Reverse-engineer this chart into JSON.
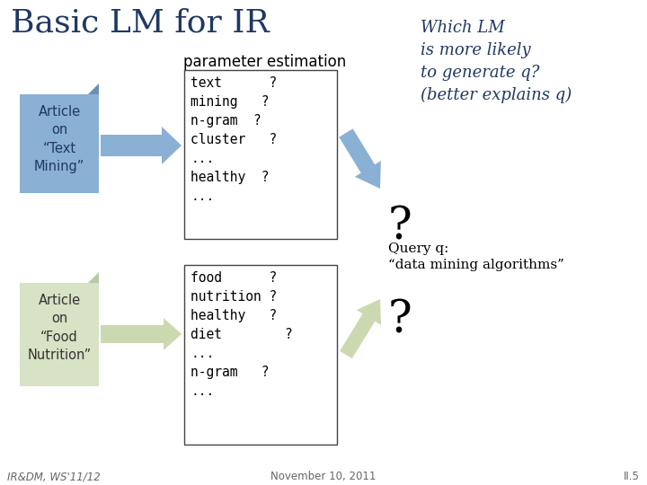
{
  "title": "Basic LM for IR",
  "param_label": "parameter estimation",
  "article1_lines": [
    "Article",
    "on",
    "“Text",
    "Mining”"
  ],
  "article2_lines": [
    "Article",
    "on",
    "“Food",
    "Nutrition”"
  ],
  "box1_content": "text      ?\nmining   ?\nn-gram  ?\ncluster   ?\n...\nhealthy  ?\n...",
  "box2_content": "food      ?\nnutrition ?\nhealthy   ?\ndiet        ?\n...\nn-gram   ?\n...",
  "which_lm_lines": [
    "Which LM",
    "is more likely",
    "to generate q?",
    "(better explains q)"
  ],
  "query_line1": "Query q:",
  "query_line2": "“data mining algorithms”",
  "question_mark": "?",
  "footer_left": "IR&DM, WS'11/12",
  "footer_center": "November 10, 2011",
  "footer_right": "II.5",
  "bg_color": "#ffffff",
  "title_color": "#1f3864",
  "text_color": "#000000",
  "article1_bg": "#8ab0d4",
  "article1_ear": "#6a90b4",
  "article2_bg": "#d8e2c4",
  "article2_ear": "#b8c8a4",
  "box_border": "#444444",
  "arrow1_color": "#8ab0d4",
  "arrow2_color": "#ccd8b0",
  "arrow_down_color": "#8ab0d4",
  "arrow_up_color": "#ccd8b0",
  "which_lm_color": "#1f3864",
  "footer_color": "#666666",
  "article1_text_color": "#1f3864",
  "article2_text_color": "#333333"
}
